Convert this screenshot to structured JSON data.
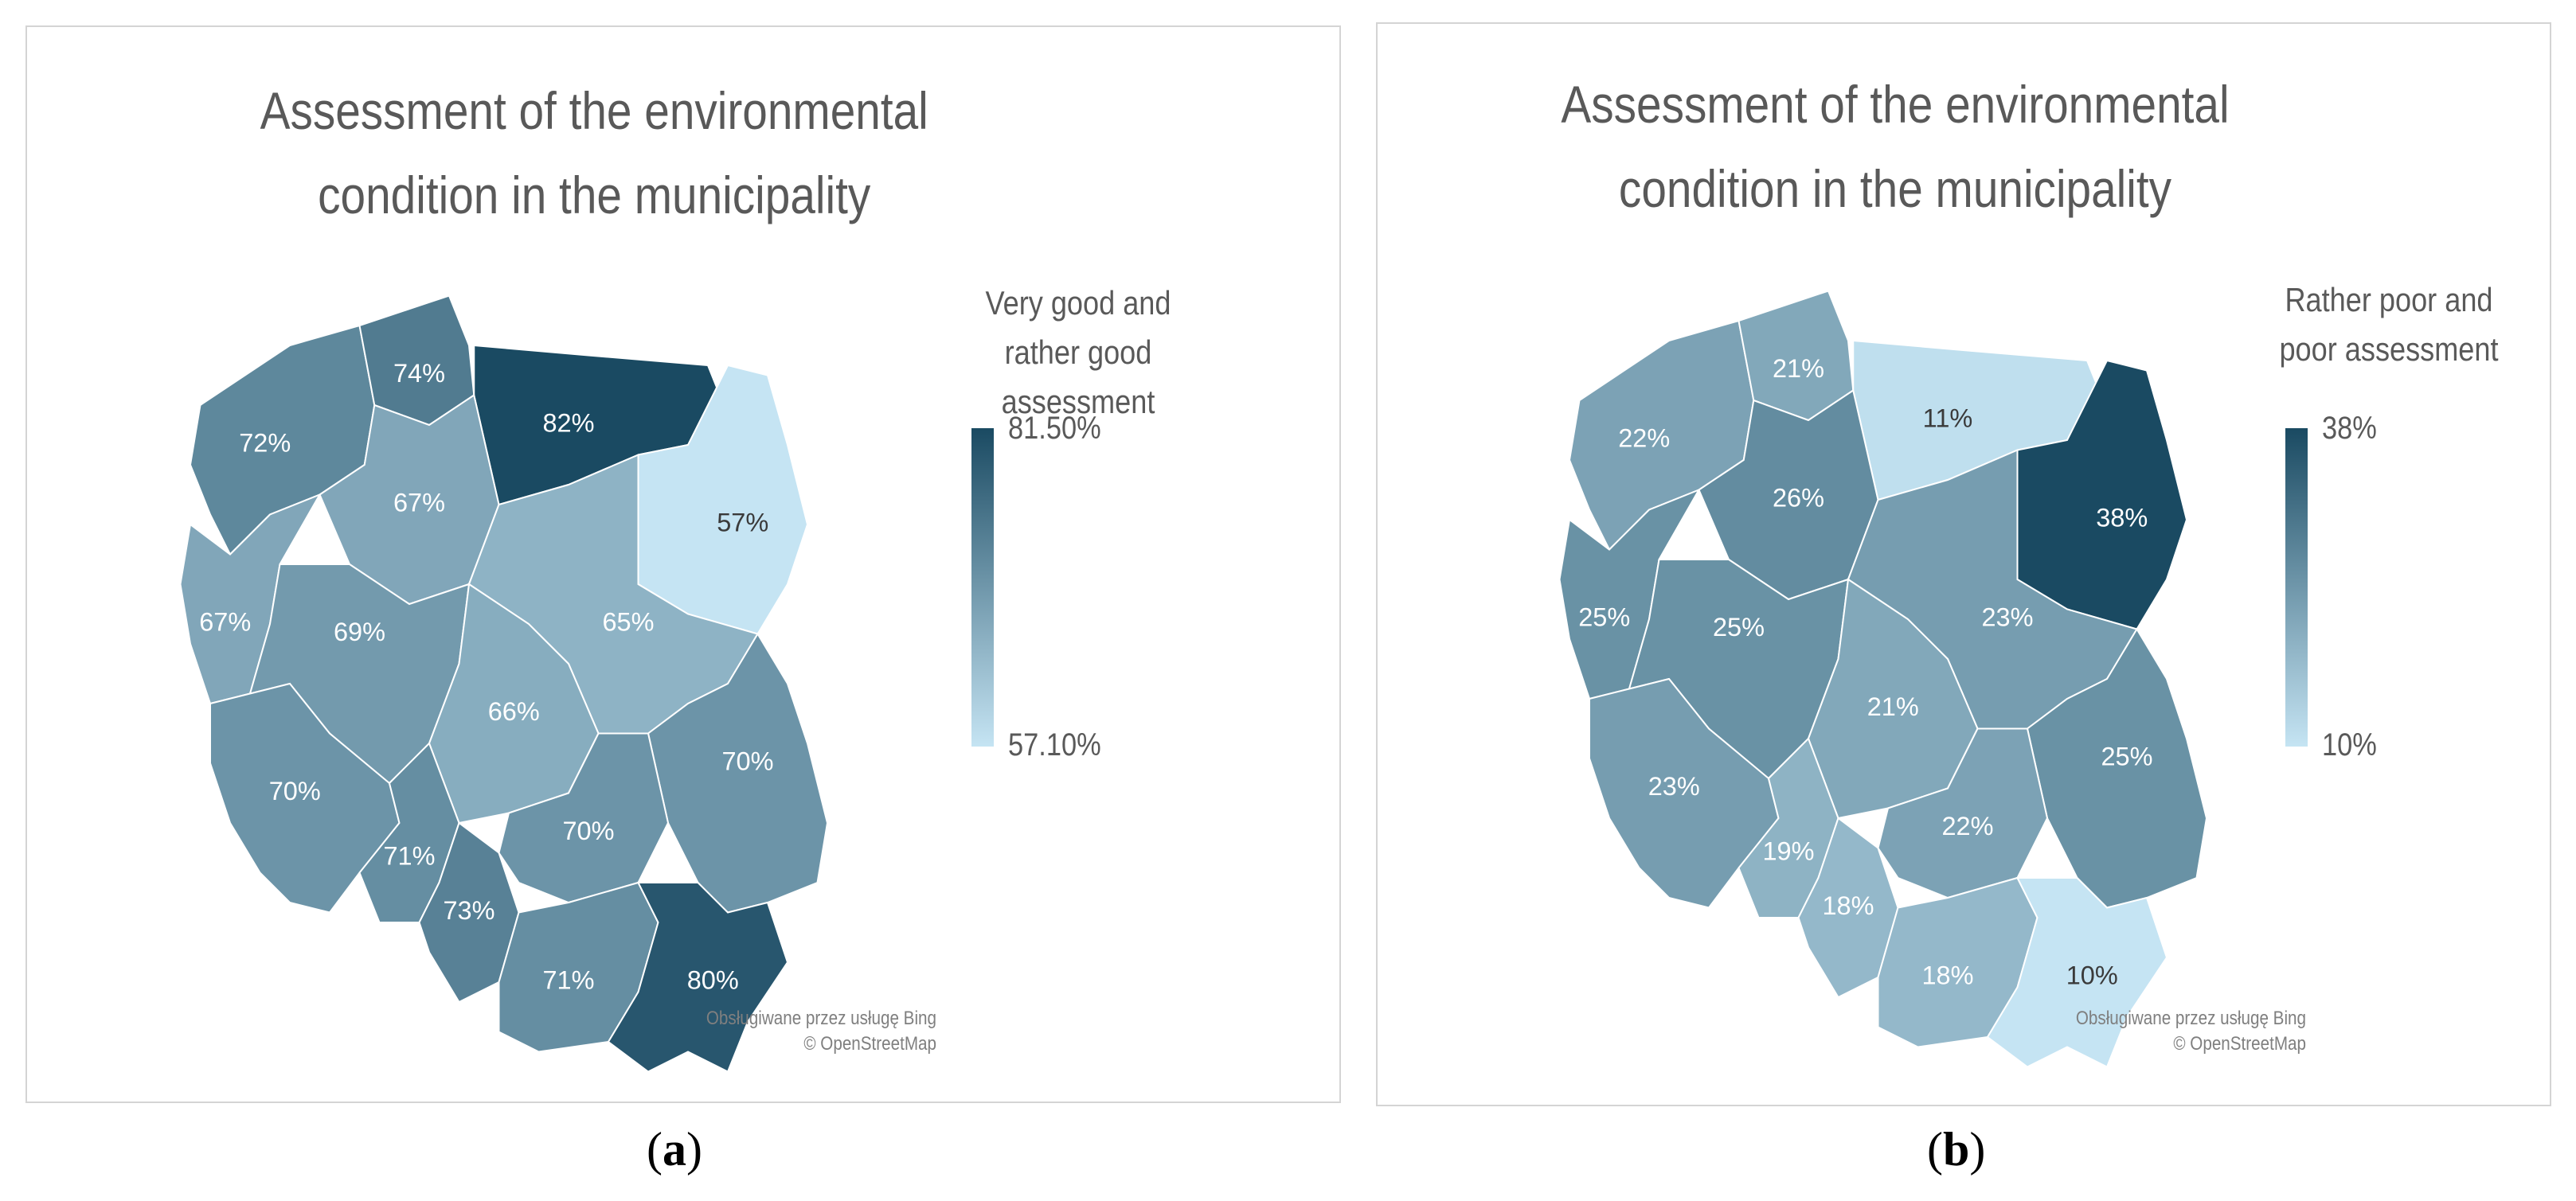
{
  "panels": [
    {
      "id": "a",
      "title": "Assessment of the environmental condition in the municipality",
      "legend_title": "Very good and rather good assessment",
      "legend_max": "81.50%",
      "legend_min": "57.10%",
      "attribution_line1": "Obsługiwane przez usługę Bing",
      "attribution_line2": "© OpenStreetMap",
      "caption": "a",
      "colors": {
        "high": "#1a4a62",
        "low": "#c5e4f3"
      },
      "regions": [
        {
          "name": "zachodniopomorskie",
          "label": "72%",
          "value": 72
        },
        {
          "name": "pomorskie",
          "label": "74%",
          "value": 74
        },
        {
          "name": "warminsko-mazurskie",
          "label": "82%",
          "value": 82
        },
        {
          "name": "podlaskie",
          "label": "57%",
          "value": 57
        },
        {
          "name": "kujawsko-pomorskie",
          "label": "67%",
          "value": 67
        },
        {
          "name": "lubuskie",
          "label": "67%",
          "value": 67
        },
        {
          "name": "wielkopolskie",
          "label": "69%",
          "value": 69
        },
        {
          "name": "mazowieckie",
          "label": "65%",
          "value": 65
        },
        {
          "name": "lodzkie",
          "label": "66%",
          "value": 66
        },
        {
          "name": "dolnoslaskie",
          "label": "70%",
          "value": 70
        },
        {
          "name": "lubelskie",
          "label": "70%",
          "value": 70
        },
        {
          "name": "opolskie",
          "label": "71%",
          "value": 71
        },
        {
          "name": "slaskie",
          "label": "73%",
          "value": 73
        },
        {
          "name": "swietokrzyskie",
          "label": "70%",
          "value": 70
        },
        {
          "name": "malopolskie",
          "label": "71%",
          "value": 71
        },
        {
          "name": "podkarpackie",
          "label": "80%",
          "value": 80
        }
      ]
    },
    {
      "id": "b",
      "title": "Assessment of the environmental condition in the municipality",
      "legend_title": "Rather poor and poor assessment",
      "legend_max": "38%",
      "legend_min": "10%",
      "attribution_line1": "Obsługiwane przez usługę Bing",
      "attribution_line2": "© OpenStreetMap",
      "caption": "b",
      "colors": {
        "high": "#1a4a62",
        "low": "#c5e4f3"
      },
      "regions": [
        {
          "name": "zachodniopomorskie",
          "label": "22%",
          "value": 22
        },
        {
          "name": "pomorskie",
          "label": "21%",
          "value": 21
        },
        {
          "name": "warminsko-mazurskie",
          "label": "11%",
          "value": 11
        },
        {
          "name": "podlaskie",
          "label": "38%",
          "value": 38
        },
        {
          "name": "kujawsko-pomorskie",
          "label": "26%",
          "value": 26
        },
        {
          "name": "lubuskie",
          "label": "25%",
          "value": 25
        },
        {
          "name": "wielkopolskie",
          "label": "25%",
          "value": 25
        },
        {
          "name": "mazowieckie",
          "label": "23%",
          "value": 23
        },
        {
          "name": "lodzkie",
          "label": "21%",
          "value": 21
        },
        {
          "name": "dolnoslaskie",
          "label": "23%",
          "value": 23
        },
        {
          "name": "lubelskie",
          "label": "25%",
          "value": 25
        },
        {
          "name": "opolskie",
          "label": "19%",
          "value": 19
        },
        {
          "name": "slaskie",
          "label": "18%",
          "value": 18
        },
        {
          "name": "swietokrzyskie",
          "label": "22%",
          "value": 22
        },
        {
          "name": "malopolskie",
          "label": "18%",
          "value": 18
        },
        {
          "name": "podkarpackie",
          "label": "10%",
          "value": 10
        }
      ]
    }
  ]
}
